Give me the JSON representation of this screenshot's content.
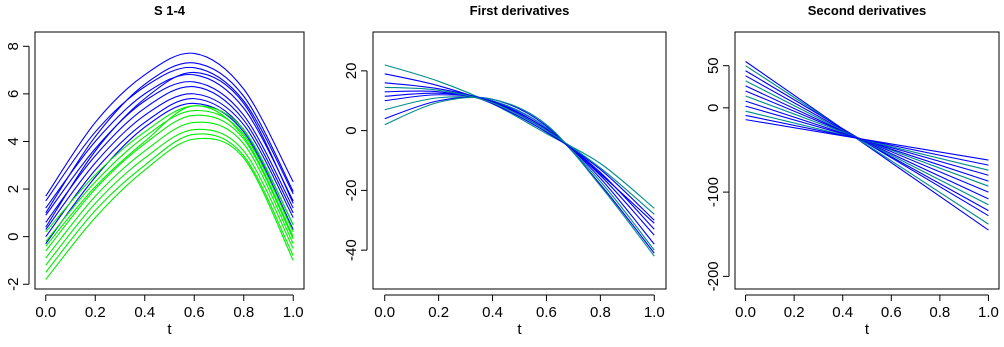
{
  "chart_data": [
    {
      "type": "line",
      "title": "S 1-4",
      "xlabel": "t",
      "ylabel": "",
      "xlim": [
        0,
        1
      ],
      "ylim": [
        -2.2,
        8.6
      ],
      "xticks": [
        0.0,
        0.2,
        0.4,
        0.6,
        0.8,
        1.0
      ],
      "xtick_labels": [
        "0.0",
        "0.2",
        "0.4",
        "0.6",
        "0.8",
        "1.0"
      ],
      "yticks": [
        -2,
        0,
        2,
        4,
        6,
        8
      ],
      "ytick_labels": [
        "-2",
        "0",
        "2",
        "4",
        "6",
        "8"
      ],
      "series_colors": [
        "#0000ff",
        "#00ee00"
      ],
      "x": [
        0.0,
        0.2,
        0.4,
        0.6,
        0.8,
        1.0
      ],
      "series": [
        {
          "values": [
            1.7,
            4.8,
            6.8,
            7.7,
            6.2,
            2.3
          ],
          "color": "#0000ff"
        },
        {
          "values": [
            1.5,
            4.4,
            6.3,
            7.1,
            5.7,
            1.8
          ],
          "color": "#0000ff"
        },
        {
          "values": [
            1.2,
            4.0,
            6.0,
            6.8,
            5.4,
            1.5
          ],
          "color": "#0000ff"
        },
        {
          "values": [
            0.9,
            3.7,
            5.7,
            6.5,
            5.1,
            1.2
          ],
          "color": "#0000ff"
        },
        {
          "values": [
            0.6,
            3.4,
            5.4,
            6.3,
            4.9,
            1.0
          ],
          "color": "#0000ff"
        },
        {
          "values": [
            0.3,
            3.1,
            5.1,
            6.0,
            4.7,
            0.8
          ],
          "color": "#0000ff"
        },
        {
          "values": [
            0.0,
            2.8,
            4.8,
            5.8,
            4.5,
            0.5
          ],
          "color": "#0000ff"
        },
        {
          "values": [
            -0.3,
            2.5,
            4.6,
            5.6,
            4.4,
            0.3
          ],
          "color": "#0000ff"
        },
        {
          "values": [
            0.4,
            3.6,
            5.8,
            6.9,
            5.6,
            1.4
          ],
          "color": "#0000ff"
        },
        {
          "values": [
            1.0,
            4.2,
            6.4,
            7.3,
            5.9,
            1.9
          ],
          "color": "#0000ff"
        },
        {
          "values": [
            0.2,
            2.6,
            4.4,
            5.5,
            4.5,
            0.5
          ],
          "color": "#00ee00"
        },
        {
          "values": [
            -0.2,
            2.3,
            4.2,
            5.3,
            4.3,
            0.2
          ],
          "color": "#00ee00"
        },
        {
          "values": [
            -0.6,
            2.0,
            3.9,
            5.1,
            4.1,
            -0.1
          ],
          "color": "#00ee00"
        },
        {
          "values": [
            -0.9,
            1.7,
            3.6,
            4.8,
            3.9,
            -0.3
          ],
          "color": "#00ee00"
        },
        {
          "values": [
            -1.2,
            1.4,
            3.3,
            4.5,
            3.6,
            -0.5
          ],
          "color": "#00ee00"
        },
        {
          "values": [
            -1.5,
            1.1,
            3.0,
            4.3,
            3.4,
            -0.8
          ],
          "color": "#00ee00"
        },
        {
          "values": [
            -1.8,
            0.8,
            2.8,
            4.1,
            3.3,
            -1.0
          ],
          "color": "#00ee00"
        },
        {
          "values": [
            -0.4,
            2.1,
            4.0,
            5.5,
            4.2,
            0.0
          ],
          "color": "#00ee00"
        }
      ]
    },
    {
      "type": "line",
      "title": "First derivatives",
      "xlabel": "t",
      "ylabel": "",
      "xlim": [
        0,
        1
      ],
      "ylim": [
        -53,
        33
      ],
      "xticks": [
        0.0,
        0.2,
        0.4,
        0.6,
        0.8,
        1.0
      ],
      "xtick_labels": [
        "0.0",
        "0.2",
        "0.4",
        "0.6",
        "0.8",
        "1.0"
      ],
      "yticks": [
        -40,
        -20,
        0,
        20
      ],
      "ytick_labels": [
        "-40",
        "-20",
        "0",
        "20"
      ],
      "series_colors": [
        "#0000ff",
        "#008b8b"
      ],
      "x": [
        0.0,
        0.2,
        0.4,
        0.6,
        0.8,
        1.0
      ],
      "series": [
        {
          "values": [
            22.0,
            16.5,
            9.0,
            -1.0,
            -11.0,
            -26.0
          ],
          "color": "#008b8b"
        },
        {
          "values": [
            19.0,
            15.0,
            9.0,
            -0.5,
            -13.0,
            -30.0
          ],
          "color": "#0000ff"
        },
        {
          "values": [
            16.0,
            14.0,
            9.5,
            0.0,
            -14.0,
            -33.0
          ],
          "color": "#0000ff"
        },
        {
          "values": [
            13.0,
            13.0,
            9.5,
            0.5,
            -15.0,
            -35.0
          ],
          "color": "#0000ff"
        },
        {
          "values": [
            10.0,
            12.0,
            10.0,
            1.0,
            -16.0,
            -38.0
          ],
          "color": "#0000ff"
        },
        {
          "values": [
            7.0,
            11.0,
            10.0,
            1.0,
            -17.0,
            -40.0
          ],
          "color": "#008b8b"
        },
        {
          "values": [
            4.0,
            10.0,
            10.5,
            1.5,
            -18.0,
            -41.0
          ],
          "color": "#0000ff"
        },
        {
          "values": [
            2.0,
            9.5,
            10.5,
            2.0,
            -18.5,
            -42.0
          ],
          "color": "#008b8b"
        },
        {
          "values": [
            11.5,
            12.5,
            9.8,
            0.5,
            -14.5,
            -31.0
          ],
          "color": "#0000ff"
        },
        {
          "values": [
            14.5,
            13.5,
            9.3,
            0.0,
            -12.5,
            -28.0
          ],
          "color": "#008b8b"
        }
      ]
    },
    {
      "type": "line",
      "title": "Second derivatives",
      "xlabel": "t",
      "ylabel": "",
      "xlim": [
        0,
        1
      ],
      "ylim": [
        -215,
        90
      ],
      "xticks": [
        0.0,
        0.2,
        0.4,
        0.6,
        0.8,
        1.0
      ],
      "xtick_labels": [
        "0.0",
        "0.2",
        "0.4",
        "0.6",
        "0.8",
        "1.0"
      ],
      "yticks": [
        -200,
        -100,
        0,
        50
      ],
      "ytick_labels": [
        "-200",
        "-100",
        "0",
        "50"
      ],
      "series_colors": [
        "#0000ff",
        "#008b8b"
      ],
      "x": [
        0.0,
        1.0
      ],
      "series": [
        {
          "values": [
            55,
            -145
          ],
          "color": "#0000ff"
        },
        {
          "values": [
            50,
            -138
          ],
          "color": "#008b8b"
        },
        {
          "values": [
            44,
            -128
          ],
          "color": "#0000ff"
        },
        {
          "values": [
            38,
            -122
          ],
          "color": "#0000ff"
        },
        {
          "values": [
            32,
            -115
          ],
          "color": "#008b8b"
        },
        {
          "values": [
            26,
            -108
          ],
          "color": "#0000ff"
        },
        {
          "values": [
            20,
            -100
          ],
          "color": "#0000ff"
        },
        {
          "values": [
            14,
            -93
          ],
          "color": "#008b8b"
        },
        {
          "values": [
            8,
            -87
          ],
          "color": "#0000ff"
        },
        {
          "values": [
            2,
            -80
          ],
          "color": "#0000ff"
        },
        {
          "values": [
            -4,
            -74
          ],
          "color": "#008b8b"
        },
        {
          "values": [
            -9,
            -68
          ],
          "color": "#0000ff"
        },
        {
          "values": [
            -14,
            -62
          ],
          "color": "#0000ff"
        }
      ]
    }
  ]
}
